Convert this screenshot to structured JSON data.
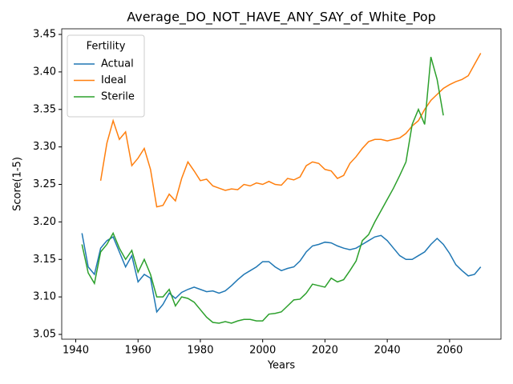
{
  "chart_data": {
    "type": "line",
    "title": "Average_DO_NOT_HAVE_ANY_SAY_of_White_Pop",
    "xlabel": "Years",
    "ylabel": "Score(1-5)",
    "legend_title": "Fertility",
    "legend": "upper left",
    "x": [
      1942,
      1944,
      1946,
      1948,
      1950,
      1952,
      1954,
      1956,
      1958,
      1960,
      1962,
      1964,
      1966,
      1968,
      1970,
      1972,
      1974,
      1976,
      1978,
      1980,
      1982,
      1984,
      1986,
      1988,
      1990,
      1992,
      1994,
      1996,
      1998,
      2000,
      2002,
      2004,
      2006,
      2008,
      2010,
      2012,
      2014,
      2016,
      2018,
      2020,
      2022,
      2024,
      2026,
      2028,
      2030,
      2032,
      2034,
      2036,
      2038,
      2040,
      2042,
      2044,
      2046,
      2048,
      2050,
      2052,
      2054,
      2056,
      2058,
      2060,
      2062,
      2064,
      2066,
      2068,
      2070
    ],
    "series": [
      {
        "name": "Actual",
        "color": "#1f77b4",
        "values": [
          3.185,
          3.14,
          3.13,
          3.165,
          3.175,
          3.18,
          3.16,
          3.14,
          3.155,
          3.12,
          3.13,
          3.125,
          3.08,
          3.09,
          3.105,
          3.098,
          3.106,
          3.11,
          3.113,
          3.11,
          3.107,
          3.108,
          3.105,
          3.108,
          3.115,
          3.123,
          3.13,
          3.135,
          3.14,
          3.147,
          3.147,
          3.14,
          3.135,
          3.138,
          3.14,
          3.148,
          3.16,
          3.168,
          3.17,
          3.173,
          3.172,
          3.168,
          3.165,
          3.163,
          3.165,
          3.17,
          3.175,
          3.18,
          3.182,
          3.175,
          3.165,
          3.155,
          3.15,
          3.15,
          3.155,
          3.16,
          3.17,
          3.178,
          3.17,
          3.158,
          3.143,
          3.135,
          3.128,
          3.13,
          3.14
        ]
      },
      {
        "name": "Ideal",
        "color": "#ff7f0e",
        "values": [
          null,
          null,
          null,
          3.255,
          3.305,
          3.335,
          3.31,
          3.32,
          3.275,
          3.285,
          3.298,
          3.27,
          3.22,
          3.222,
          3.237,
          3.228,
          3.258,
          3.28,
          3.268,
          3.255,
          3.257,
          3.248,
          3.245,
          3.242,
          3.244,
          3.243,
          3.25,
          3.248,
          3.252,
          3.25,
          3.254,
          3.25,
          3.249,
          3.258,
          3.256,
          3.26,
          3.275,
          3.28,
          3.278,
          3.27,
          3.268,
          3.258,
          3.262,
          3.278,
          3.287,
          3.298,
          3.307,
          3.31,
          3.31,
          3.308,
          3.31,
          3.312,
          3.318,
          3.328,
          3.335,
          3.35,
          3.362,
          3.37,
          3.378,
          3.383,
          3.387,
          3.39,
          3.395,
          3.41,
          3.425
        ]
      },
      {
        "name": "Sterile",
        "color": "#2ca02c",
        "values": [
          3.17,
          3.132,
          3.118,
          3.16,
          3.17,
          3.185,
          3.165,
          3.15,
          3.162,
          3.133,
          3.15,
          3.13,
          3.1,
          3.1,
          3.11,
          3.088,
          3.1,
          3.098,
          3.093,
          3.083,
          3.073,
          3.066,
          3.065,
          3.067,
          3.065,
          3.068,
          3.07,
          3.07,
          3.068,
          3.068,
          3.077,
          3.078,
          3.08,
          3.088,
          3.096,
          3.097,
          3.105,
          3.117,
          3.115,
          3.113,
          3.125,
          3.12,
          3.123,
          3.135,
          3.148,
          3.175,
          3.183,
          3.2,
          3.215,
          3.23,
          3.245,
          3.262,
          3.28,
          3.33,
          3.35,
          3.33,
          3.42,
          3.39,
          3.342,
          null,
          null,
          null,
          null,
          null,
          null
        ]
      }
    ],
    "xlim": [
      1935.5,
      2076.5
    ],
    "xticks": [
      1940,
      1960,
      1980,
      2000,
      2020,
      2040,
      2060
    ],
    "ylim": [
      3.0436,
      3.4575
    ],
    "yticks": [
      3.05,
      {
        "value": 3.1,
        "label": "3.10"
      },
      3.15,
      {
        "value": 3.2,
        "label": "3.20"
      },
      3.25,
      {
        "value": 3.3,
        "label": "3.30"
      },
      3.35,
      {
        "value": 3.4,
        "label": "3.40"
      },
      3.45
    ]
  }
}
